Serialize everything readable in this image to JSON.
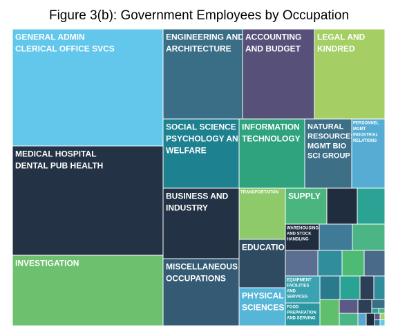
{
  "chart_data": {
    "type": "treemap",
    "title": "Figure 3(b): Government Employees by Occupation",
    "tiles": [
      {
        "name": "GENERAL ADMIN CLERICAL OFFICE SVCS",
        "lines": [
          "GENERAL ADMIN",
          "CLERICAL OFFICE SVCS"
        ],
        "color": "#62c7eb"
      },
      {
        "name": "MEDICAL HOSPITAL DENTAL PUB HEALTH",
        "lines": [
          "MEDICAL HOSPITAL",
          "DENTAL PUB HEALTH"
        ],
        "color": "#233244"
      },
      {
        "name": "INVESTIGATION",
        "lines": [
          "INVESTIGATION"
        ],
        "color": "#6cc06e"
      },
      {
        "name": "ENGINEERING AND ARCHITECTURE",
        "lines": [
          "ENGINEERING AND",
          "ARCHITECTURE"
        ],
        "color": "#3a6e86"
      },
      {
        "name": "ACCOUNTING AND BUDGET",
        "lines": [
          "ACCOUNTING",
          "AND BUDGET"
        ],
        "color": "#57517a"
      },
      {
        "name": "LEGAL AND KINDRED",
        "lines": [
          "LEGAL AND",
          "KINDRED"
        ],
        "color": "#a5cf64"
      },
      {
        "name": "SOCIAL SCIENCE PSYCHOLOGY AND WELFARE",
        "lines": [
          "SOCIAL SCIENCE",
          "PSYCHOLOGY AND",
          "WELFARE"
        ],
        "color": "#1e8190"
      },
      {
        "name": "INFORMATION TECHNOLOGY",
        "lines": [
          "INFORMATION",
          "TECHNOLOGY"
        ],
        "color": "#2fa37e"
      },
      {
        "name": "NATURAL RESOURCES MGMT BIO SCI GROUP",
        "lines": [
          "NATURAL",
          "RESOURCES",
          "MGMT BIO",
          "SCI GROUP"
        ],
        "color": "#3d6f87"
      },
      {
        "name": "PERSONNEL MGMT INDUSTRIAL RELATIONS",
        "lines": [
          "PERSONNEL",
          "MGMT",
          "INDUSTRIAL",
          "RELATIONS"
        ],
        "color": "#56acd3"
      },
      {
        "name": "BUSINESS AND INDUSTRY",
        "lines": [
          "BUSINESS AND",
          "INDUSTRY"
        ],
        "color": "#233244"
      },
      {
        "name": "MISCELLANEOUS OCCUPATIONS",
        "lines": [
          "MISCELLANEOUS",
          "OCCUPATIONS"
        ],
        "color": "#355a74"
      },
      {
        "name": "TRANSPORTATION",
        "lines": [
          "TRANSPORTATION"
        ],
        "color": "#8fca6a"
      },
      {
        "name": "EDUCATION",
        "lines": [
          "EDUCATION"
        ],
        "color": "#2e4b62"
      },
      {
        "name": "PHYSICAL SCIENCES",
        "lines": [
          "PHYSICAL",
          "SCIENCES"
        ],
        "color": "#55b6d8"
      },
      {
        "name": "SUPPLY",
        "lines": [
          "SUPPLY"
        ],
        "color": "#4bb580"
      },
      {
        "name": "WAREHOUSING AND STOCK HANDLING",
        "lines": [
          "WAREHOUSING",
          "AND STOCK",
          "HANDLING"
        ],
        "color": "#1f2d3e"
      },
      {
        "name": "EQUIPMENT FACILITIES AND SERVICES",
        "lines": [
          "EQUIPMENT",
          "FACILITIES",
          "AND",
          "SERVICES"
        ],
        "color": "#3aa2b0"
      },
      {
        "name": "FOOD PREPARATION AND SERVING",
        "lines": [
          "FOOD",
          "PREPARATION",
          "AND SERVING"
        ],
        "color": "#2a97a1"
      },
      {
        "name": "",
        "lines": [],
        "color": "#1f2d3e"
      },
      {
        "name": "",
        "lines": [],
        "color": "#2aa394"
      },
      {
        "name": "",
        "lines": [],
        "color": "#3f7a96"
      },
      {
        "name": "",
        "lines": [],
        "color": "#4bb585"
      },
      {
        "name": "",
        "lines": [],
        "color": "#5b6f93"
      },
      {
        "name": "",
        "lines": [],
        "color": "#2f8d9c"
      },
      {
        "name": "",
        "lines": [],
        "color": "#4dbb73"
      },
      {
        "name": "",
        "lines": [],
        "color": "#4a6a8a"
      },
      {
        "name": "",
        "lines": [],
        "color": "#2a7a8c"
      },
      {
        "name": "",
        "lines": [],
        "color": "#2aa394"
      },
      {
        "name": "",
        "lines": [],
        "color": "#2c3f56"
      },
      {
        "name": "",
        "lines": [],
        "color": "#2f8d9c"
      },
      {
        "name": "",
        "lines": [],
        "color": "#5fbf6c"
      },
      {
        "name": "",
        "lines": [],
        "color": "#5b5a86"
      },
      {
        "name": "",
        "lines": [],
        "color": "#2c3f56"
      },
      {
        "name": "",
        "lines": [],
        "color": "#3a6e86"
      },
      {
        "name": "",
        "lines": [],
        "color": "#4bb585"
      },
      {
        "name": "",
        "lines": [],
        "color": "#5aa6cf"
      },
      {
        "name": "",
        "lines": [],
        "color": "#1f2d3e"
      },
      {
        "name": "",
        "lines": [],
        "color": "#2aa394"
      },
      {
        "name": "",
        "lines": [],
        "color": "#4bb585"
      },
      {
        "name": "",
        "lines": [],
        "color": "#5b5a86"
      },
      {
        "name": "",
        "lines": [],
        "color": "#a5cf64"
      },
      {
        "name": "",
        "lines": [],
        "color": "#2a7a8c"
      },
      {
        "name": "",
        "lines": [],
        "color": "#62c7eb"
      }
    ]
  }
}
